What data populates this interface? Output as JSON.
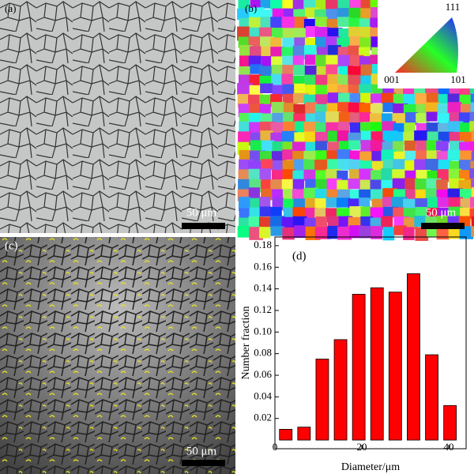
{
  "panels": {
    "a": {
      "label": "(a)",
      "scale_label": "50 μm"
    },
    "b": {
      "label": "(b)",
      "scale_label": "50 μm",
      "key": {
        "top": "111",
        "left": "001",
        "right": "101"
      }
    },
    "c": {
      "label": "(c)",
      "scale_label": "50 μm"
    },
    "d": {
      "label": "(d)"
    }
  },
  "chart_data": {
    "type": "bar",
    "x": [
      2.5,
      6.7,
      10.9,
      15.1,
      19.3,
      23.5,
      27.7,
      31.9,
      36.1,
      40.3
    ],
    "values": [
      0.01,
      0.012,
      0.075,
      0.093,
      0.135,
      0.141,
      0.137,
      0.154,
      0.079,
      0.032
    ],
    "color": "#ff0000",
    "xlabel": "Diameter/μm",
    "ylabel": "Number fraction",
    "xlim": [
      0,
      44
    ],
    "ylim": [
      -0.008,
      0.188
    ],
    "xticks": [
      0,
      20,
      40
    ],
    "yticks": [
      0.02,
      0.04,
      0.06,
      0.08,
      {
        "value": 0.1,
        "label": "0.10"
      },
      0.12,
      0.14,
      0.16,
      0.18
    ]
  }
}
